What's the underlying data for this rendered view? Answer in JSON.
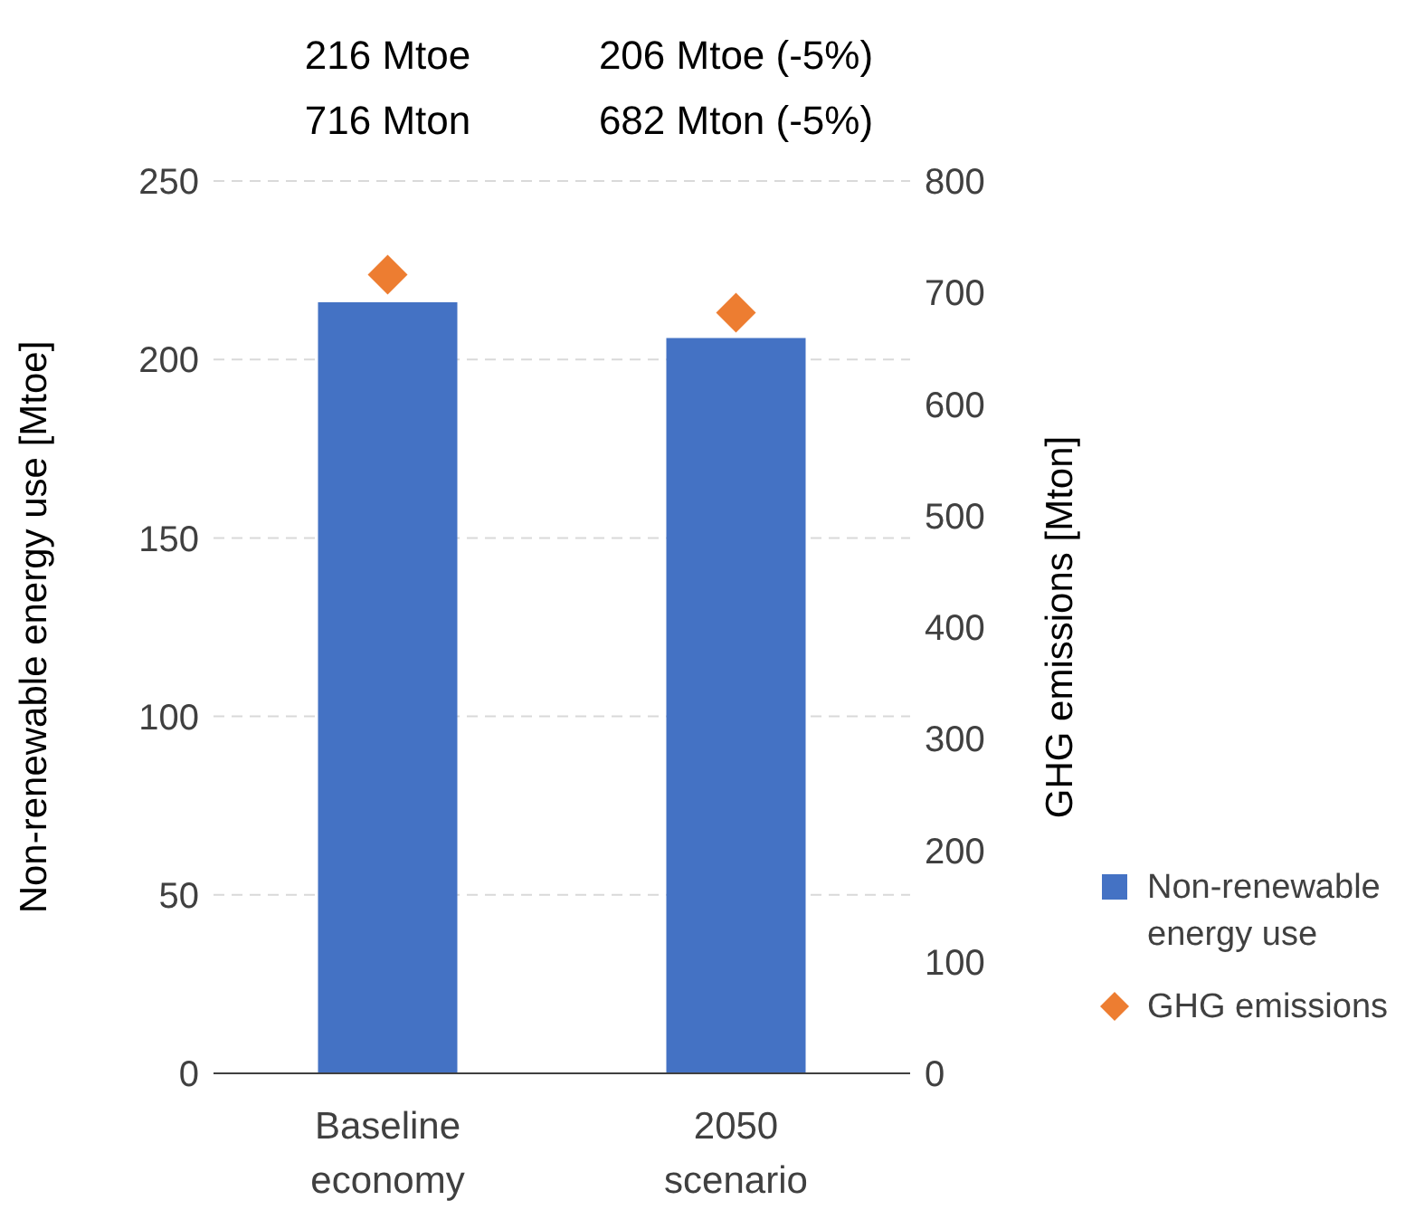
{
  "chart_data": {
    "type": "bar",
    "categories": [
      "Baseline economy",
      "2050 scenario"
    ],
    "ylabel": "Non-renewable energy use [Mtoe]",
    "y2label": "GHG emissions [Mton]",
    "series": [
      {
        "name": "Non-renewable energy use",
        "color": "#4472c4",
        "values": [
          216,
          206
        ]
      },
      {
        "name": "GHG emissions",
        "type": "scatter",
        "axis": "y2",
        "color": "#ed7d31",
        "values": [
          716,
          682
        ],
        "marker": "diamond"
      }
    ],
    "ylim": [
      0,
      250
    ],
    "yticks": [
      0,
      50,
      100,
      150,
      200,
      250
    ],
    "y2lim": [
      0,
      800
    ],
    "y2ticks": [
      0,
      100,
      200,
      300,
      400,
      500,
      600,
      700,
      800
    ],
    "annotations": [
      "216 Mtoe",
      "716 Mton",
      "206 Mtoe (-5%)",
      "682 Mton (-5%)"
    ],
    "grid": "y",
    "legend": "right"
  }
}
